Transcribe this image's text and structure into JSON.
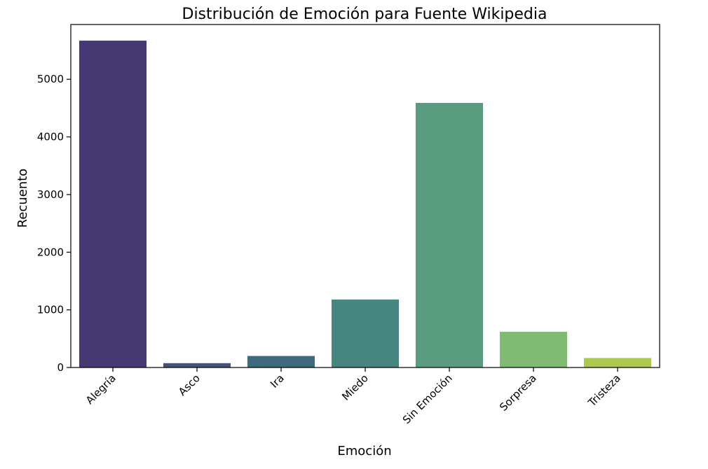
{
  "chart_data": {
    "type": "bar",
    "title": "Distribución de Emoción para Fuente Wikipedia",
    "xlabel": "Emoción",
    "ylabel": "Recuento",
    "categories": [
      "Alegría",
      "Asco",
      "Ira",
      "Miedo",
      "Sin Emoción",
      "Sorpresa",
      "Tristeza"
    ],
    "values": [
      5670,
      75,
      200,
      1180,
      4590,
      620,
      165
    ],
    "colors": [
      "#463872",
      "#43537d",
      "#3e6a80",
      "#468580",
      "#5a9c7f",
      "#80bb73",
      "#abc94f"
    ],
    "yticks": [
      0,
      1000,
      2000,
      3000,
      4000,
      5000
    ],
    "ytick_labels": [
      "0",
      "1000",
      "2000",
      "3000",
      "4000",
      "5000"
    ],
    "ylim": [
      0,
      5950
    ],
    "grid": false,
    "legend": "none"
  }
}
